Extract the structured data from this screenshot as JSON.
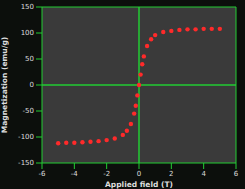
{
  "chart_data": {
    "type": "scatter",
    "x_label": "Applied field (T)",
    "y_label": "Magnetization (emu/g)",
    "x": [
      -5,
      -4.5,
      -4,
      -3.5,
      -3,
      -2.5,
      -2,
      -1.5,
      -1,
      -0.75,
      -0.5,
      -0.3,
      -0.2,
      -0.1,
      0,
      0.1,
      0.2,
      0.3,
      0.5,
      0.75,
      1,
      1.5,
      2,
      2.5,
      3,
      3.5,
      4,
      4.5,
      5
    ],
    "values": [
      -112,
      -111,
      -111,
      -110,
      -109,
      -108,
      -106,
      -103,
      -96,
      -88,
      -75,
      -55,
      -40,
      -20,
      0,
      20,
      40,
      55,
      75,
      88,
      96,
      102,
      104,
      106,
      107,
      107,
      108,
      108,
      108
    ],
    "color": "#ff2a2a",
    "marker": "circle",
    "xlim": [
      -6,
      6
    ],
    "xticks": [
      -6,
      -4,
      -2,
      0,
      2,
      4,
      6
    ],
    "ylim": [
      -150,
      150
    ],
    "yticks": [
      -150,
      -100,
      -50,
      0,
      50,
      100,
      150
    ],
    "grid": false
  }
}
